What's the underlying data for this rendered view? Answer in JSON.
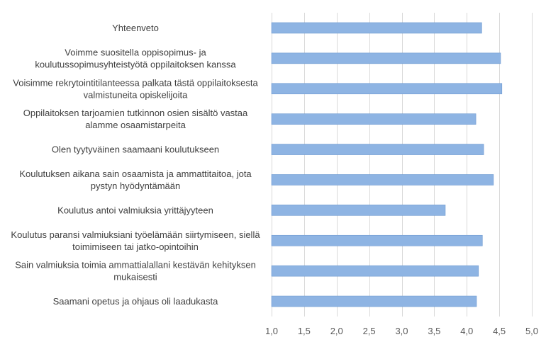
{
  "chart_data": {
    "type": "bar",
    "orientation": "horizontal",
    "categories": [
      [
        "Yhteenveto"
      ],
      [
        "Voimme suositella oppisopimus- ja",
        "koulutussopimusyhteistyötä oppilaitoksen kanssa"
      ],
      [
        "Voisimme rekrytointitilanteessa palkata tästä oppilaitoksesta",
        "valmistuneita opiskelijoita"
      ],
      [
        "Oppilaitoksen tarjoamien tutkinnon osien sisältö vastaa",
        "alamme osaamistarpeita"
      ],
      [
        "Olen tyytyväinen saamaani koulutukseen"
      ],
      [
        "Koulutuksen aikana sain osaamista ja ammattitaitoa, jota",
        "pystyn hyödyntämään"
      ],
      [
        "Koulutus antoi valmiuksia yrittäjyyteen"
      ],
      [
        "Koulutus paransi valmiuksiani työelämään siirtymiseen, siellä",
        "toimimiseen tai jatko-opintoihin"
      ],
      [
        "Sain valmiuksia toimia ammattialallani kestävän kehityksen",
        "mukaisesti"
      ],
      [
        "Saamani opetus ja ohjaus oli laadukasta"
      ]
    ],
    "values": [
      4.23,
      4.52,
      4.54,
      4.14,
      4.26,
      4.41,
      3.67,
      4.24,
      4.18,
      4.15
    ],
    "xlim": [
      1.0,
      5.0
    ],
    "ticks": [
      "1,0",
      "1,5",
      "2,0",
      "2,5",
      "3,0",
      "3,5",
      "4,0",
      "4,5",
      "5,0"
    ],
    "tick_values": [
      1.0,
      1.5,
      2.0,
      2.5,
      3.0,
      3.5,
      4.0,
      4.5,
      5.0
    ],
    "grid": true,
    "bar_color": "#8eb4e3",
    "bar_edge_color": "#6f9bd1",
    "grid_color": "#d9d9d9"
  }
}
